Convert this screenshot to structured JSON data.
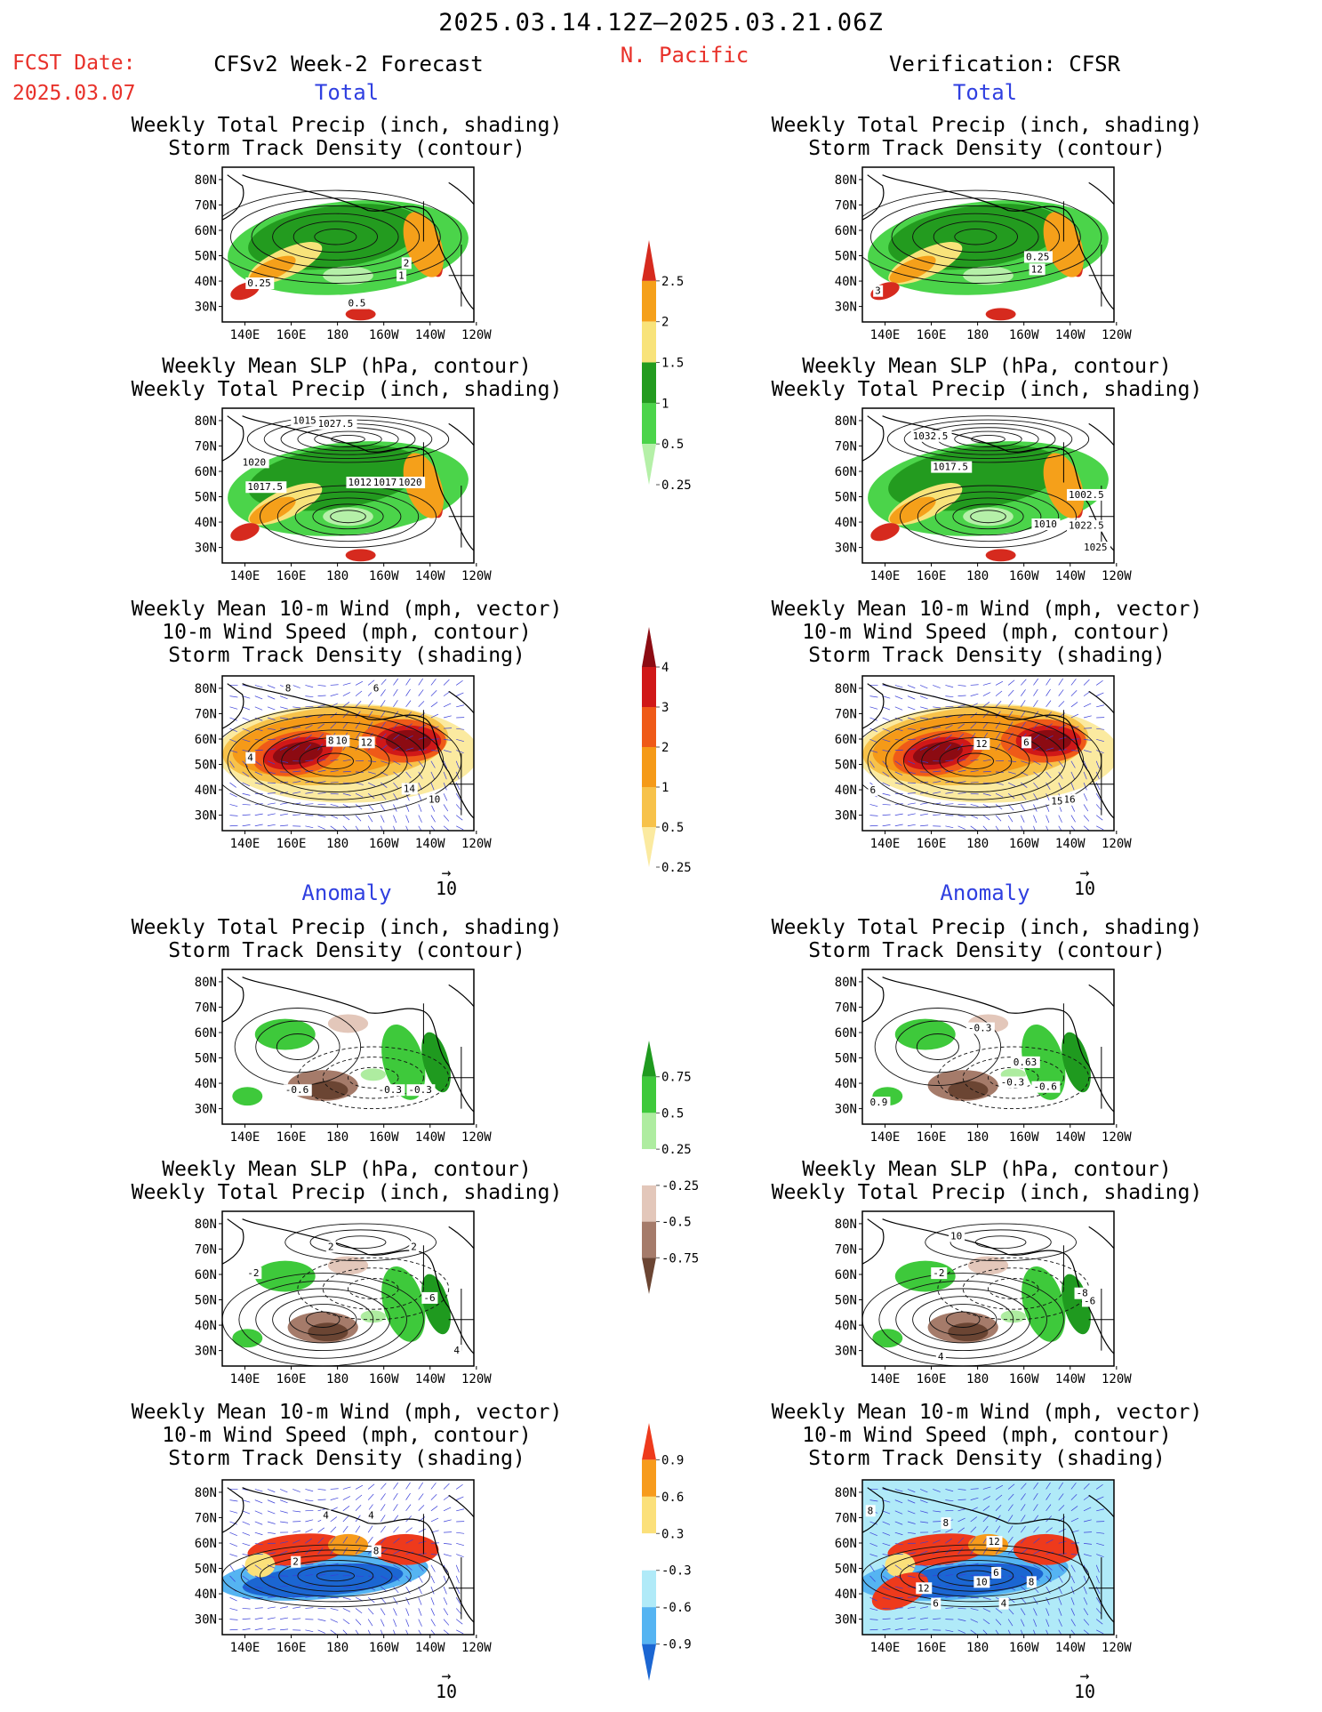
{
  "header": {
    "date_range": "2025.03.14.12Z–2025.03.21.06Z",
    "fcst_label": "FCST Date:",
    "fcst_date": "2025.03.07",
    "region": "N. Pacific",
    "left_title": "CFSv2 Week-2 Forecast",
    "right_title": "Verification: CFSR"
  },
  "sections": {
    "total": "Total",
    "anomaly": "Anomaly"
  },
  "panel_titles": {
    "precip_storm": [
      "Weekly Total Precip (inch, shading)",
      "Storm Track Density (contour)"
    ],
    "slp_precip": [
      "Weekly Mean SLP (hPa, contour)",
      "Weekly Total Precip (inch, shading)"
    ],
    "wind_storm": [
      "Weekly Mean 10-m Wind (mph, vector)",
      "10-m Wind Speed (mph, contour)",
      "Storm Track Density (shading)"
    ]
  },
  "axes": {
    "lat_ticks": [
      "80N",
      "70N",
      "60N",
      "50N",
      "40N",
      "30N"
    ],
    "lon_ticks": [
      "140E",
      "160E",
      "180",
      "160W",
      "140W",
      "120W"
    ]
  },
  "vector_ref": "10",
  "colorbars": [
    {
      "id": "precip-total",
      "labels": [
        "2.5",
        "2",
        "1.5",
        "1",
        "0.5",
        "0.25"
      ],
      "colors": [
        "#d62a1e",
        "#f5a01a",
        "#f8e37a",
        "#239b1f",
        "#4bd44a",
        "#b5f0a8"
      ]
    },
    {
      "id": "storm-total",
      "labels": [
        "4",
        "3",
        "2",
        "1",
        "0.5",
        "0.25"
      ],
      "colors": [
        "#8c0b12",
        "#d01818",
        "#ef5a18",
        "#f59a18",
        "#f7c24a",
        "#fbeaa0"
      ]
    },
    {
      "id": "precip-anom",
      "labels": [
        "0.75",
        "0.5",
        "0.25",
        "-0.25",
        "-0.5",
        "-0.75"
      ],
      "colors": [
        "#1f9a1f",
        "#3ec93b",
        "#aeeca0",
        "#ffffff",
        "#e3c7ba",
        "#a57b6a",
        "#6b4533"
      ]
    },
    {
      "id": "storm-anom",
      "labels": [
        "0.9",
        "0.6",
        "0.3",
        "-0.3",
        "-0.6",
        "-0.9"
      ],
      "colors": [
        "#ee3a1c",
        "#f79b1c",
        "#fbe07a",
        "#ffffff",
        "#b0eaf8",
        "#55b4f2",
        "#1b66d2"
      ]
    }
  ],
  "panels": [
    {
      "id": "fcst-total-precip",
      "labels": [
        "0.25",
        "0.5",
        "2",
        "1"
      ]
    },
    {
      "id": "verif-total-precip",
      "labels": [
        "3",
        "0.25",
        "12"
      ]
    },
    {
      "id": "fcst-total-slp",
      "labels": [
        "1020",
        "1027.5",
        "1017.5",
        "1015",
        "1012.5",
        "1017.5",
        "1020"
      ]
    },
    {
      "id": "verif-total-slp",
      "labels": [
        "1032.5",
        "1017.5",
        "1002.5",
        "1010",
        "1022.5",
        "1025"
      ]
    },
    {
      "id": "fcst-total-wind",
      "labels": [
        "8",
        "6",
        "4",
        "8",
        "10",
        "12",
        "14",
        "10"
      ]
    },
    {
      "id": "verif-total-wind",
      "labels": [
        "6",
        "12",
        "6",
        "16",
        "15"
      ]
    },
    {
      "id": "fcst-anom-precip",
      "labels": [
        "-0.6",
        "-0.3",
        "-0.3"
      ]
    },
    {
      "id": "verif-anom-precip",
      "labels": [
        "-0.3",
        "0.6",
        "0.63",
        "-0.3",
        "-0.6",
        "0.9"
      ]
    },
    {
      "id": "fcst-anom-slp",
      "labels": [
        "2",
        "2",
        "-2",
        "-6",
        "4"
      ]
    },
    {
      "id": "verif-anom-slp",
      "labels": [
        "10",
        "-2",
        "-6",
        "-8",
        "4"
      ]
    },
    {
      "id": "fcst-anom-wind",
      "labels": [
        "4",
        "2",
        "8",
        "4"
      ]
    },
    {
      "id": "verif-anom-wind",
      "labels": [
        "8",
        "8",
        "12",
        "6",
        "10",
        "8",
        "12",
        "4",
        "6"
      ]
    }
  ]
}
